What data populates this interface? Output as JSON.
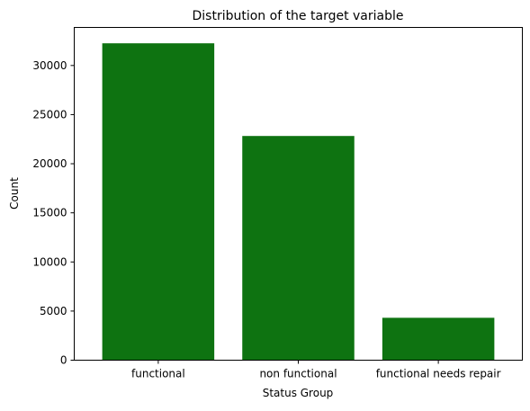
{
  "chart_data": {
    "type": "bar",
    "title": "Distribution of the target variable",
    "xlabel": "Status Group",
    "ylabel": "Count",
    "categories": [
      "functional",
      "non functional",
      "functional needs repair"
    ],
    "values": [
      32259,
      22824,
      4317
    ],
    "ylim": [
      0,
      33875
    ],
    "yticks": [
      0,
      5000,
      10000,
      15000,
      20000,
      25000,
      30000
    ],
    "bar_color": "#0e7311",
    "grid": false,
    "legend": "none"
  }
}
